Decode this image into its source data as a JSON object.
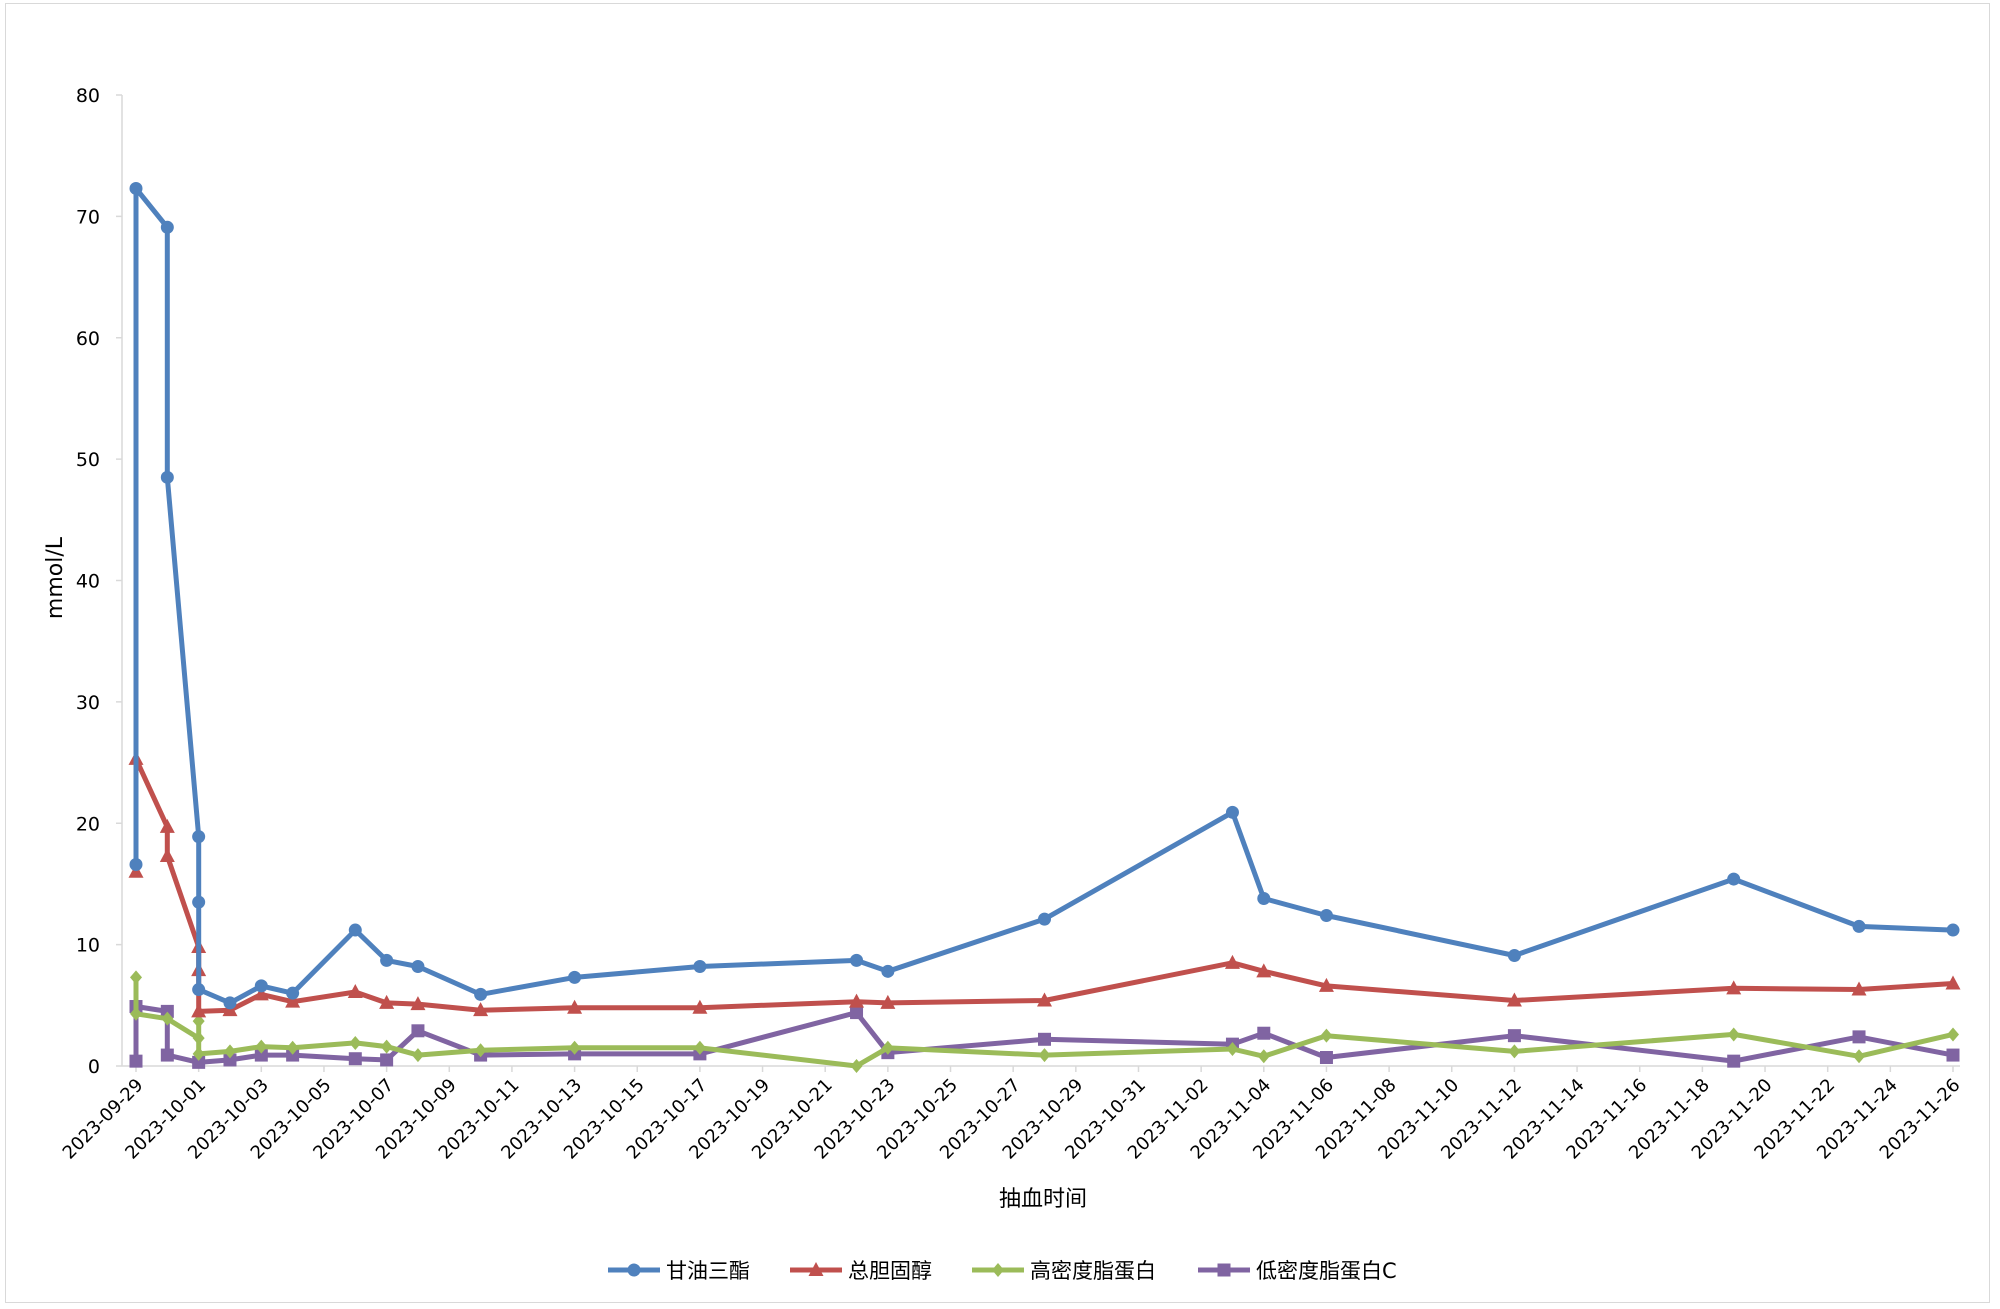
{
  "chart_data": {
    "type": "line",
    "title": "",
    "xlabel": "抽血时间",
    "ylabel": "mmol/L",
    "ylim": [
      0,
      80
    ],
    "yticks": [
      0,
      10,
      20,
      30,
      40,
      50,
      60,
      70,
      80
    ],
    "x_tick_labels": [
      "2023-09-29",
      "2023-10-01",
      "2023-10-03",
      "2023-10-05",
      "2023-10-07",
      "2023-10-09",
      "2023-10-11",
      "2023-10-13",
      "2023-10-15",
      "2023-10-17",
      "2023-10-19",
      "2023-10-21",
      "2023-10-23",
      "2023-10-25",
      "2023-10-27",
      "2023-10-29",
      "2023-10-31",
      "2023-11-02",
      "2023-11-04",
      "2023-11-06",
      "2023-11-08",
      "2023-11-10",
      "2023-11-12",
      "2023-11-14",
      "2023-11-16",
      "2023-11-18",
      "2023-11-20",
      "2023-11-22",
      "2023-11-24",
      "2023-11-26"
    ],
    "x_range": [
      "2023-09-29",
      "2023-11-26"
    ],
    "grid": false,
    "legend_position": "bottom",
    "series": [
      {
        "name": "甘油三酯",
        "color": "#4f81bd",
        "marker": "circle",
        "points": [
          [
            "2023-09-29",
            16.6
          ],
          [
            "2023-09-29",
            72.3
          ],
          [
            "2023-09-30",
            69.1
          ],
          [
            "2023-09-30",
            48.5
          ],
          [
            "2023-10-01",
            18.9
          ],
          [
            "2023-10-01",
            13.5
          ],
          [
            "2023-10-01",
            6.3
          ],
          [
            "2023-10-02",
            5.2
          ],
          [
            "2023-10-03",
            6.6
          ],
          [
            "2023-10-04",
            6.0
          ],
          [
            "2023-10-06",
            11.2
          ],
          [
            "2023-10-07",
            8.7
          ],
          [
            "2023-10-08",
            8.2
          ],
          [
            "2023-10-10",
            5.9
          ],
          [
            "2023-10-13",
            7.3
          ],
          [
            "2023-10-17",
            8.2
          ],
          [
            "2023-10-22",
            8.7
          ],
          [
            "2023-10-23",
            7.8
          ],
          [
            "2023-10-28",
            12.1
          ],
          [
            "2023-11-03",
            20.9
          ],
          [
            "2023-11-04",
            13.8
          ],
          [
            "2023-11-06",
            12.4
          ],
          [
            "2023-11-12",
            9.1
          ],
          [
            "2023-11-19",
            15.4
          ],
          [
            "2023-11-23",
            11.5
          ],
          [
            "2023-11-26",
            11.2
          ]
        ]
      },
      {
        "name": "总胆固醇",
        "color": "#c0504d",
        "marker": "triangle",
        "points": [
          [
            "2023-09-29",
            16.0
          ],
          [
            "2023-09-29",
            25.3
          ],
          [
            "2023-09-30",
            19.7
          ],
          [
            "2023-09-30",
            17.3
          ],
          [
            "2023-10-01",
            9.8
          ],
          [
            "2023-10-01",
            7.9
          ],
          [
            "2023-10-01",
            4.5
          ],
          [
            "2023-10-02",
            4.6
          ],
          [
            "2023-10-03",
            5.9
          ],
          [
            "2023-10-04",
            5.3
          ],
          [
            "2023-10-06",
            6.1
          ],
          [
            "2023-10-07",
            5.2
          ],
          [
            "2023-10-08",
            5.1
          ],
          [
            "2023-10-10",
            4.6
          ],
          [
            "2023-10-13",
            4.8
          ],
          [
            "2023-10-17",
            4.8
          ],
          [
            "2023-10-22",
            5.3
          ],
          [
            "2023-10-23",
            5.2
          ],
          [
            "2023-10-28",
            5.4
          ],
          [
            "2023-11-03",
            8.5
          ],
          [
            "2023-11-04",
            7.8
          ],
          [
            "2023-11-06",
            6.6
          ],
          [
            "2023-11-12",
            5.4
          ],
          [
            "2023-11-19",
            6.4
          ],
          [
            "2023-11-23",
            6.3
          ],
          [
            "2023-11-26",
            6.8
          ]
        ]
      },
      {
        "name": "高密度脂蛋白",
        "color": "#9bbb59",
        "marker": "diamond",
        "points": [
          [
            "2023-09-29",
            7.3
          ],
          [
            "2023-09-29",
            4.3
          ],
          [
            "2023-09-30",
            3.9
          ],
          [
            "2023-10-01",
            2.3
          ],
          [
            "2023-10-01",
            3.7
          ],
          [
            "2023-10-01",
            1.0
          ],
          [
            "2023-10-02",
            1.2
          ],
          [
            "2023-10-03",
            1.6
          ],
          [
            "2023-10-04",
            1.5
          ],
          [
            "2023-10-06",
            1.9
          ],
          [
            "2023-10-07",
            1.6
          ],
          [
            "2023-10-08",
            0.9
          ],
          [
            "2023-10-10",
            1.3
          ],
          [
            "2023-10-13",
            1.5
          ],
          [
            "2023-10-17",
            1.5
          ],
          [
            "2023-10-22",
            0.0
          ],
          [
            "2023-10-23",
            1.5
          ],
          [
            "2023-10-28",
            0.9
          ],
          [
            "2023-11-03",
            1.4
          ],
          [
            "2023-11-04",
            0.8
          ],
          [
            "2023-11-06",
            2.5
          ],
          [
            "2023-11-12",
            1.2
          ],
          [
            "2023-11-19",
            2.6
          ],
          [
            "2023-11-23",
            0.8
          ],
          [
            "2023-11-26",
            2.6
          ]
        ]
      },
      {
        "name": "低密度脂蛋白C",
        "color": "#8064a2",
        "marker": "square",
        "points": [
          [
            "2023-09-29",
            0.4
          ],
          [
            "2023-09-29",
            4.9
          ],
          [
            "2023-09-30",
            4.5
          ],
          [
            "2023-09-30",
            0.9
          ],
          [
            "2023-10-01",
            0.3
          ],
          [
            "2023-10-02",
            0.5
          ],
          [
            "2023-10-03",
            0.9
          ],
          [
            "2023-10-04",
            0.9
          ],
          [
            "2023-10-06",
            0.6
          ],
          [
            "2023-10-07",
            0.5
          ],
          [
            "2023-10-08",
            2.9
          ],
          [
            "2023-10-10",
            0.9
          ],
          [
            "2023-10-13",
            1.0
          ],
          [
            "2023-10-17",
            1.0
          ],
          [
            "2023-10-22",
            4.4
          ],
          [
            "2023-10-23",
            1.1
          ],
          [
            "2023-10-28",
            2.2
          ],
          [
            "2023-11-03",
            1.8
          ],
          [
            "2023-11-04",
            2.7
          ],
          [
            "2023-11-06",
            0.7
          ],
          [
            "2023-11-12",
            2.5
          ],
          [
            "2023-11-19",
            0.4
          ],
          [
            "2023-11-23",
            2.4
          ],
          [
            "2023-11-26",
            0.9
          ]
        ]
      }
    ]
  }
}
